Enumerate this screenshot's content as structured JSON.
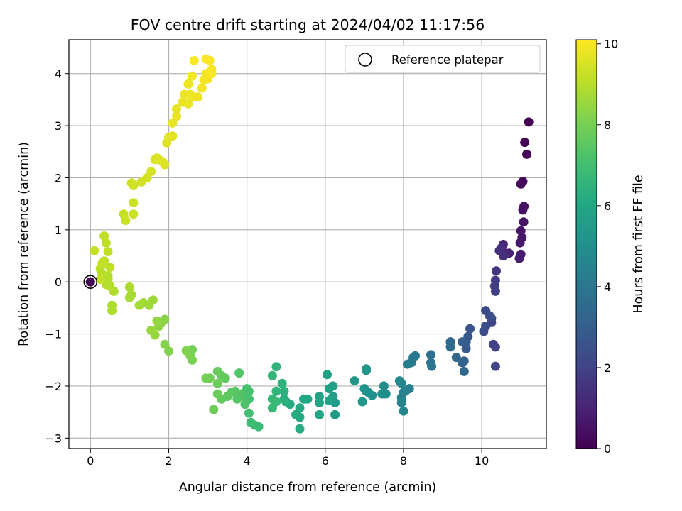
{
  "chart_data": {
    "type": "scatter",
    "title": "FOV centre drift starting at 2024/04/02 11:17:56",
    "xlabel": "Angular distance from reference (arcmin)",
    "ylabel": "Rotation from reference (arcmin)",
    "xlim": [
      -0.55,
      11.65
    ],
    "ylim": [
      -3.2,
      4.65
    ],
    "xticks": [
      0,
      2,
      4,
      6,
      8,
      10
    ],
    "yticks": [
      -3,
      -2,
      -1,
      0,
      1,
      2,
      3,
      4
    ],
    "grid": true,
    "colormap": "viridis",
    "colorbar": {
      "label": "Hours from first FF file",
      "range": [
        0,
        10.1
      ],
      "ticks": [
        0,
        2,
        4,
        6,
        8,
        10
      ]
    },
    "legend": {
      "position": "top-right",
      "entries": [
        "Reference platepar"
      ]
    },
    "reference_point": {
      "x": 0,
      "y": 0
    },
    "points": [
      [
        11.2,
        3.07,
        0.0
      ],
      [
        11.1,
        2.68,
        0.07
      ],
      [
        11.15,
        2.45,
        0.14
      ],
      [
        11.05,
        1.93,
        0.21
      ],
      [
        11.0,
        1.88,
        0.28
      ],
      [
        11.08,
        1.45,
        0.35
      ],
      [
        11.05,
        1.38,
        0.42
      ],
      [
        11.07,
        1.15,
        0.49
      ],
      [
        11.0,
        0.98,
        0.56
      ],
      [
        11.03,
        0.85,
        0.63
      ],
      [
        10.98,
        0.75,
        0.7
      ],
      [
        11.0,
        0.53,
        0.77
      ],
      [
        10.96,
        0.45,
        0.84
      ],
      [
        10.7,
        0.55,
        0.95
      ],
      [
        10.6,
        0.55,
        1.05
      ],
      [
        10.55,
        0.72,
        1.15
      ],
      [
        10.5,
        0.65,
        1.25
      ],
      [
        10.55,
        0.5,
        1.35
      ],
      [
        10.45,
        0.6,
        1.45
      ],
      [
        10.37,
        0.21,
        1.6
      ],
      [
        10.35,
        0.03,
        1.7
      ],
      [
        10.33,
        -0.08,
        1.8
      ],
      [
        10.35,
        -0.18,
        1.9
      ],
      [
        10.3,
        -1.2,
        2.0
      ],
      [
        10.35,
        -1.25,
        2.05
      ],
      [
        10.35,
        -1.62,
        2.1
      ],
      [
        10.25,
        -0.78,
        2.15
      ],
      [
        10.25,
        -0.7,
        2.2
      ],
      [
        10.1,
        -0.55,
        2.3
      ],
      [
        10.1,
        -0.85,
        2.35
      ],
      [
        10.05,
        -0.95,
        2.4
      ],
      [
        10.2,
        -0.65,
        2.45
      ],
      [
        9.7,
        -0.9,
        2.6
      ],
      [
        9.65,
        -1.05,
        2.7
      ],
      [
        9.6,
        -1.15,
        2.8
      ],
      [
        9.6,
        -1.28,
        2.9
      ],
      [
        9.5,
        -1.15,
        3.0
      ],
      [
        9.55,
        -1.52,
        3.1
      ],
      [
        9.5,
        -1.55,
        3.2
      ],
      [
        9.55,
        -1.72,
        3.3
      ],
      [
        9.35,
        -1.45,
        3.35
      ],
      [
        9.2,
        -1.15,
        3.45
      ],
      [
        9.2,
        -1.25,
        3.55
      ],
      [
        8.7,
        -1.4,
        3.7
      ],
      [
        8.7,
        -1.55,
        3.8
      ],
      [
        8.72,
        -1.62,
        3.9
      ],
      [
        8.3,
        -1.42,
        4.0
      ],
      [
        8.25,
        -1.45,
        4.05
      ],
      [
        8.2,
        -1.55,
        4.1
      ],
      [
        8.1,
        -1.58,
        4.2
      ],
      [
        8.15,
        -2.05,
        4.3
      ],
      [
        8.05,
        -2.1,
        4.4
      ],
      [
        8.0,
        -2.12,
        4.45
      ],
      [
        7.95,
        -2.22,
        4.5
      ],
      [
        7.95,
        -2.32,
        4.55
      ],
      [
        8.0,
        -2.48,
        4.6
      ],
      [
        7.95,
        -1.95,
        4.65
      ],
      [
        7.9,
        -1.9,
        4.7
      ],
      [
        7.5,
        -2.0,
        4.85
      ],
      [
        7.55,
        -2.15,
        4.9
      ],
      [
        7.45,
        -2.15,
        4.95
      ],
      [
        7.2,
        -2.18,
        5.0
      ],
      [
        7.1,
        -2.12,
        5.05
      ],
      [
        7.05,
        -2.1,
        5.1
      ],
      [
        7.0,
        -2.05,
        5.15
      ],
      [
        7.05,
        -1.67,
        5.2
      ],
      [
        7.05,
        -1.7,
        5.25
      ],
      [
        6.95,
        -2.3,
        5.3
      ],
      [
        6.75,
        -1.9,
        5.35
      ],
      [
        6.25,
        -2.55,
        5.5
      ],
      [
        6.25,
        -2.32,
        5.55
      ],
      [
        6.2,
        -2.2,
        5.6
      ],
      [
        6.2,
        -2.0,
        5.65
      ],
      [
        6.1,
        -2.05,
        5.7
      ],
      [
        6.05,
        -1.78,
        5.75
      ],
      [
        6.1,
        -2.28,
        5.8
      ],
      [
        5.85,
        -2.2,
        5.85
      ],
      [
        5.85,
        -2.55,
        5.9
      ],
      [
        5.85,
        -2.32,
        5.95
      ],
      [
        5.55,
        -2.25,
        6.0
      ],
      [
        5.45,
        -2.25,
        6.05
      ],
      [
        5.35,
        -2.42,
        6.1
      ],
      [
        5.35,
        -2.6,
        6.12
      ],
      [
        5.35,
        -2.82,
        6.15
      ],
      [
        5.25,
        -2.55,
        6.2
      ],
      [
        5.1,
        -2.35,
        6.25
      ],
      [
        5.0,
        -2.3,
        6.3
      ],
      [
        4.95,
        -2.25,
        6.35
      ],
      [
        4.95,
        -2.1,
        6.4
      ],
      [
        4.9,
        -1.95,
        6.45
      ],
      [
        4.75,
        -2.1,
        6.5
      ],
      [
        4.75,
        -1.63,
        6.55
      ],
      [
        4.65,
        -1.8,
        6.6
      ],
      [
        4.65,
        -2.25,
        6.65
      ],
      [
        4.65,
        -2.42,
        6.7
      ],
      [
        4.75,
        -2.3,
        6.75
      ],
      [
        4.3,
        -2.78,
        6.85
      ],
      [
        4.2,
        -2.75,
        6.9
      ],
      [
        4.1,
        -2.7,
        6.95
      ],
      [
        4.05,
        -2.52,
        7.0
      ],
      [
        4.05,
        -2.25,
        7.05
      ],
      [
        4.05,
        -2.1,
        7.1
      ],
      [
        4.0,
        -2.05,
        7.15
      ],
      [
        3.95,
        -2.2,
        7.2
      ],
      [
        3.95,
        -2.35,
        7.25
      ],
      [
        3.85,
        -2.15,
        7.3
      ],
      [
        3.8,
        -1.75,
        7.35
      ],
      [
        3.75,
        -2.25,
        7.4
      ],
      [
        3.7,
        -2.1,
        7.45
      ],
      [
        3.6,
        -2.12,
        7.5
      ],
      [
        3.5,
        -2.2,
        7.55
      ],
      [
        3.45,
        -1.85,
        7.6
      ],
      [
        3.35,
        -2.25,
        7.62
      ],
      [
        3.35,
        -1.8,
        7.65
      ],
      [
        3.25,
        -1.72,
        7.7
      ],
      [
        3.25,
        -2.15,
        7.75
      ],
      [
        3.25,
        -1.95,
        7.8
      ],
      [
        3.15,
        -2.45,
        7.85
      ],
      [
        3.05,
        -1.85,
        7.88
      ],
      [
        2.95,
        -1.85,
        7.95
      ],
      [
        2.6,
        -1.3,
        8.0
      ],
      [
        2.6,
        -1.5,
        8.05
      ],
      [
        2.55,
        -1.42,
        8.1
      ],
      [
        2.45,
        -1.32,
        8.15
      ],
      [
        2.0,
        -1.33,
        8.2
      ],
      [
        1.9,
        -1.2,
        8.25
      ],
      [
        1.9,
        -0.72,
        8.3
      ],
      [
        1.8,
        -0.8,
        8.35
      ],
      [
        1.75,
        -0.85,
        8.4
      ],
      [
        1.7,
        -0.75,
        8.45
      ],
      [
        1.65,
        -1.02,
        8.5
      ],
      [
        1.55,
        -0.93,
        8.55
      ],
      [
        1.6,
        -0.35,
        8.6
      ],
      [
        1.5,
        -0.45,
        8.65
      ],
      [
        1.35,
        -0.4,
        8.7
      ],
      [
        1.25,
        -0.45,
        8.72
      ],
      [
        1.05,
        -0.25,
        8.75
      ],
      [
        1.0,
        -0.3,
        8.78
      ],
      [
        1.0,
        -0.1,
        8.82
      ],
      [
        0.55,
        -0.45,
        8.85
      ],
      [
        0.55,
        -0.55,
        8.88
      ],
      [
        0.6,
        -0.18,
        8.9
      ],
      [
        0.5,
        -0.08,
        8.92
      ],
      [
        0.45,
        0.05,
        8.94
      ],
      [
        0.45,
        0.12,
        8.96
      ],
      [
        0.4,
        -0.05,
        8.98
      ],
      [
        0.35,
        0.05,
        9.0
      ],
      [
        0.3,
        0.15,
        9.02
      ],
      [
        0.25,
        0.25,
        9.04
      ],
      [
        0.35,
        0.4,
        9.06
      ],
      [
        0.4,
        0.75,
        9.08
      ],
      [
        0.5,
        0.28,
        9.1
      ],
      [
        0.45,
        0.58,
        9.12
      ],
      [
        0.35,
        0.88,
        9.14
      ],
      [
        0.3,
        0.35,
        9.16
      ],
      [
        0.25,
        0.05,
        9.18
      ],
      [
        0.1,
        0.6,
        9.2
      ],
      [
        0.85,
        1.3,
        9.25
      ],
      [
        0.9,
        1.18,
        9.28
      ],
      [
        1.1,
        1.3,
        9.3
      ],
      [
        1.1,
        1.52,
        9.33
      ],
      [
        1.05,
        1.9,
        9.36
      ],
      [
        1.1,
        1.85,
        9.39
      ],
      [
        1.3,
        1.92,
        9.42
      ],
      [
        1.45,
        2.0,
        9.45
      ],
      [
        1.55,
        2.12,
        9.48
      ],
      [
        1.65,
        2.35,
        9.51
      ],
      [
        1.7,
        2.38,
        9.54
      ],
      [
        1.75,
        2.35,
        9.57
      ],
      [
        1.85,
        2.3,
        9.6
      ],
      [
        1.9,
        2.25,
        9.62
      ],
      [
        1.95,
        2.67,
        9.65
      ],
      [
        2.0,
        2.78,
        9.67
      ],
      [
        2.1,
        2.8,
        9.7
      ],
      [
        2.1,
        3.05,
        9.72
      ],
      [
        2.2,
        3.18,
        9.74
      ],
      [
        2.2,
        3.32,
        9.76
      ],
      [
        2.35,
        3.45,
        9.78
      ],
      [
        2.4,
        3.6,
        9.8
      ],
      [
        2.5,
        3.42,
        9.82
      ],
      [
        2.55,
        3.6,
        9.84
      ],
      [
        2.5,
        3.8,
        9.86
      ],
      [
        2.65,
        3.55,
        9.88
      ],
      [
        2.75,
        3.55,
        9.9
      ],
      [
        2.6,
        3.95,
        9.92
      ],
      [
        2.85,
        3.72,
        9.94
      ],
      [
        2.9,
        3.88,
        9.96
      ],
      [
        2.95,
        4.0,
        9.97
      ],
      [
        3.0,
        3.9,
        9.98
      ],
      [
        3.1,
        4.08,
        9.99
      ],
      [
        3.05,
        4.25,
        10.0
      ],
      [
        3.1,
        4.0,
        10.03
      ],
      [
        2.65,
        4.25,
        10.06
      ],
      [
        2.95,
        4.28,
        10.1
      ]
    ]
  }
}
